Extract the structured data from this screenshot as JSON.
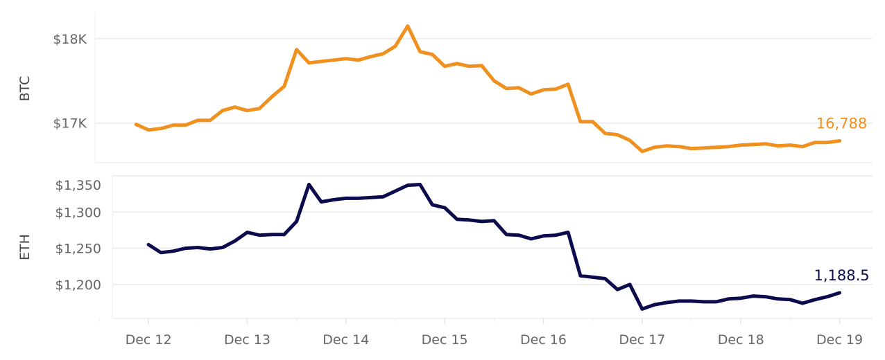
{
  "chart_data": [
    {
      "type": "line",
      "ylabel": "BTC",
      "color": "#F0901E",
      "ylim": [
        16530,
        18310
      ],
      "yticks": [
        {
          "value": 17000,
          "label": "$17K"
        },
        {
          "value": 18000,
          "label": "$18K"
        }
      ],
      "x_start": "Dec 11 21:00",
      "x_interval_hours": 3,
      "values": [
        16984,
        16918,
        16934,
        16975,
        16975,
        17033,
        17033,
        17148,
        17189,
        17148,
        17172,
        17312,
        17435,
        17870,
        17713,
        17730,
        17746,
        17763,
        17746,
        17787,
        17820,
        17910,
        18150,
        17845,
        17812,
        17672,
        17705,
        17672,
        17681,
        17500,
        17410,
        17418,
        17344,
        17394,
        17402,
        17459,
        17016,
        17016,
        16877,
        16861,
        16795,
        16664,
        16713,
        16729,
        16721,
        16697,
        16705,
        16713,
        16721,
        16738,
        16746,
        16754,
        16729,
        16738,
        16721,
        16770,
        16770,
        16788
      ],
      "last_value_label": "16,788",
      "grid": true
    },
    {
      "type": "line",
      "ylabel": "ETH",
      "color": "#0B0B4D",
      "ylim": [
        1153,
        1350
      ],
      "yticks": [
        {
          "value": 1200,
          "label": "$1,200"
        },
        {
          "value": 1250,
          "label": "$1,250"
        },
        {
          "value": 1300,
          "label": "$1,300"
        },
        {
          "value": 1350,
          "label": "$1,350"
        }
      ],
      "x_start": "Dec 12 00:00",
      "x_interval_hours": 3,
      "values": [
        1255,
        1244,
        1246,
        1250,
        1251,
        1249,
        1251,
        1260,
        1272,
        1268,
        1269,
        1269,
        1287,
        1338,
        1314,
        1317,
        1319,
        1319,
        1320,
        1321,
        1329,
        1337,
        1338,
        1310,
        1306,
        1290,
        1289,
        1287,
        1288,
        1269,
        1268,
        1263,
        1267,
        1268,
        1272,
        1212,
        1210,
        1208,
        1193,
        1200,
        1166,
        1172,
        1175,
        1177,
        1177,
        1176,
        1176,
        1180,
        1181,
        1184,
        1183,
        1180,
        1179,
        1174,
        1179,
        1183,
        1188.5
      ],
      "last_value_label": "1,188.5",
      "grid": true
    }
  ],
  "x_axis": {
    "xlim": [
      "Dec 11 11:00",
      "Dec 19 08:00"
    ],
    "ticks": [
      "Dec 12",
      "Dec 13",
      "Dec 14",
      "Dec 15",
      "Dec 16",
      "Dec 17",
      "Dec 18",
      "Dec 19"
    ]
  }
}
